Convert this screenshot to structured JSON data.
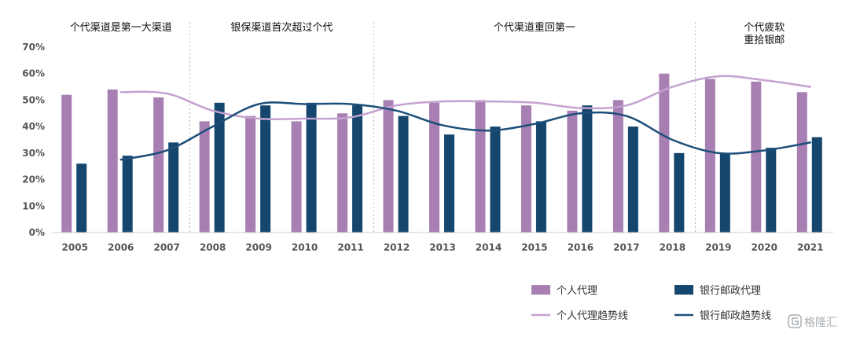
{
  "chart_data": {
    "type": "bar",
    "categories": [
      "2005",
      "2006",
      "2007",
      "2008",
      "2009",
      "2010",
      "2011",
      "2012",
      "2013",
      "2014",
      "2015",
      "2016",
      "2017",
      "2018",
      "2019",
      "2020",
      "2021"
    ],
    "series": [
      {
        "name": "个人代理",
        "type": "bar",
        "color": "#a77fb2",
        "values": [
          52,
          54,
          51,
          42,
          44,
          42,
          45,
          50,
          49,
          50,
          48,
          46,
          50,
          60,
          58,
          57,
          53
        ]
      },
      {
        "name": "银行邮政代理",
        "type": "bar",
        "color": "#14466e",
        "values": [
          26,
          29,
          34,
          49,
          48,
          49,
          48,
          44,
          37,
          40,
          42,
          48,
          40,
          30,
          30,
          32,
          36
        ]
      },
      {
        "name": "个人代理趋势线",
        "type": "line",
        "color": "#c4a2cf",
        "values": [
          null,
          53,
          52.5,
          46,
          43,
          43,
          43.5,
          48,
          49.5,
          49.5,
          49,
          47,
          48,
          55,
          59,
          57.5,
          55
        ]
      },
      {
        "name": "银行邮政趋势线",
        "type": "line",
        "color": "#1d4f7a",
        "values": [
          null,
          27.5,
          31,
          40,
          48.5,
          48.5,
          48.5,
          46,
          40.5,
          38.5,
          41,
          45,
          44,
          35,
          30,
          31,
          34
        ]
      }
    ],
    "ylim": [
      0,
      70
    ],
    "yticks": [
      "0%",
      "10%",
      "20%",
      "30%",
      "40%",
      "50%",
      "60%",
      "70%"
    ],
    "periods": [
      {
        "lines": [
          "个代渠道是第一大渠道"
        ],
        "start_index": 0,
        "end_index": 2
      },
      {
        "lines": [
          "银保渠道首次超过个代"
        ],
        "start_index": 3,
        "end_index": 6
      },
      {
        "lines": [
          "个代渠道重回第一"
        ],
        "start_index": 7,
        "end_index": 13
      },
      {
        "lines": [
          "个代疲软",
          "重拾银邮"
        ],
        "start_index": 14,
        "end_index": 16
      }
    ],
    "legend_position": "bottom-right",
    "grid": false
  },
  "legend": {
    "items": [
      {
        "label": "个人代理",
        "kind": "bar",
        "color": "#a77fb2"
      },
      {
        "label": "银行邮政代理",
        "kind": "bar",
        "color": "#14466e"
      },
      {
        "label": "个人代理趋势线",
        "kind": "line",
        "color": "#c4a2cf"
      },
      {
        "label": "银行邮政趋势线",
        "kind": "line",
        "color": "#1d4f7a"
      }
    ]
  },
  "watermark": {
    "text": "格隆汇",
    "icon": "gelonghui-logo-icon"
  }
}
